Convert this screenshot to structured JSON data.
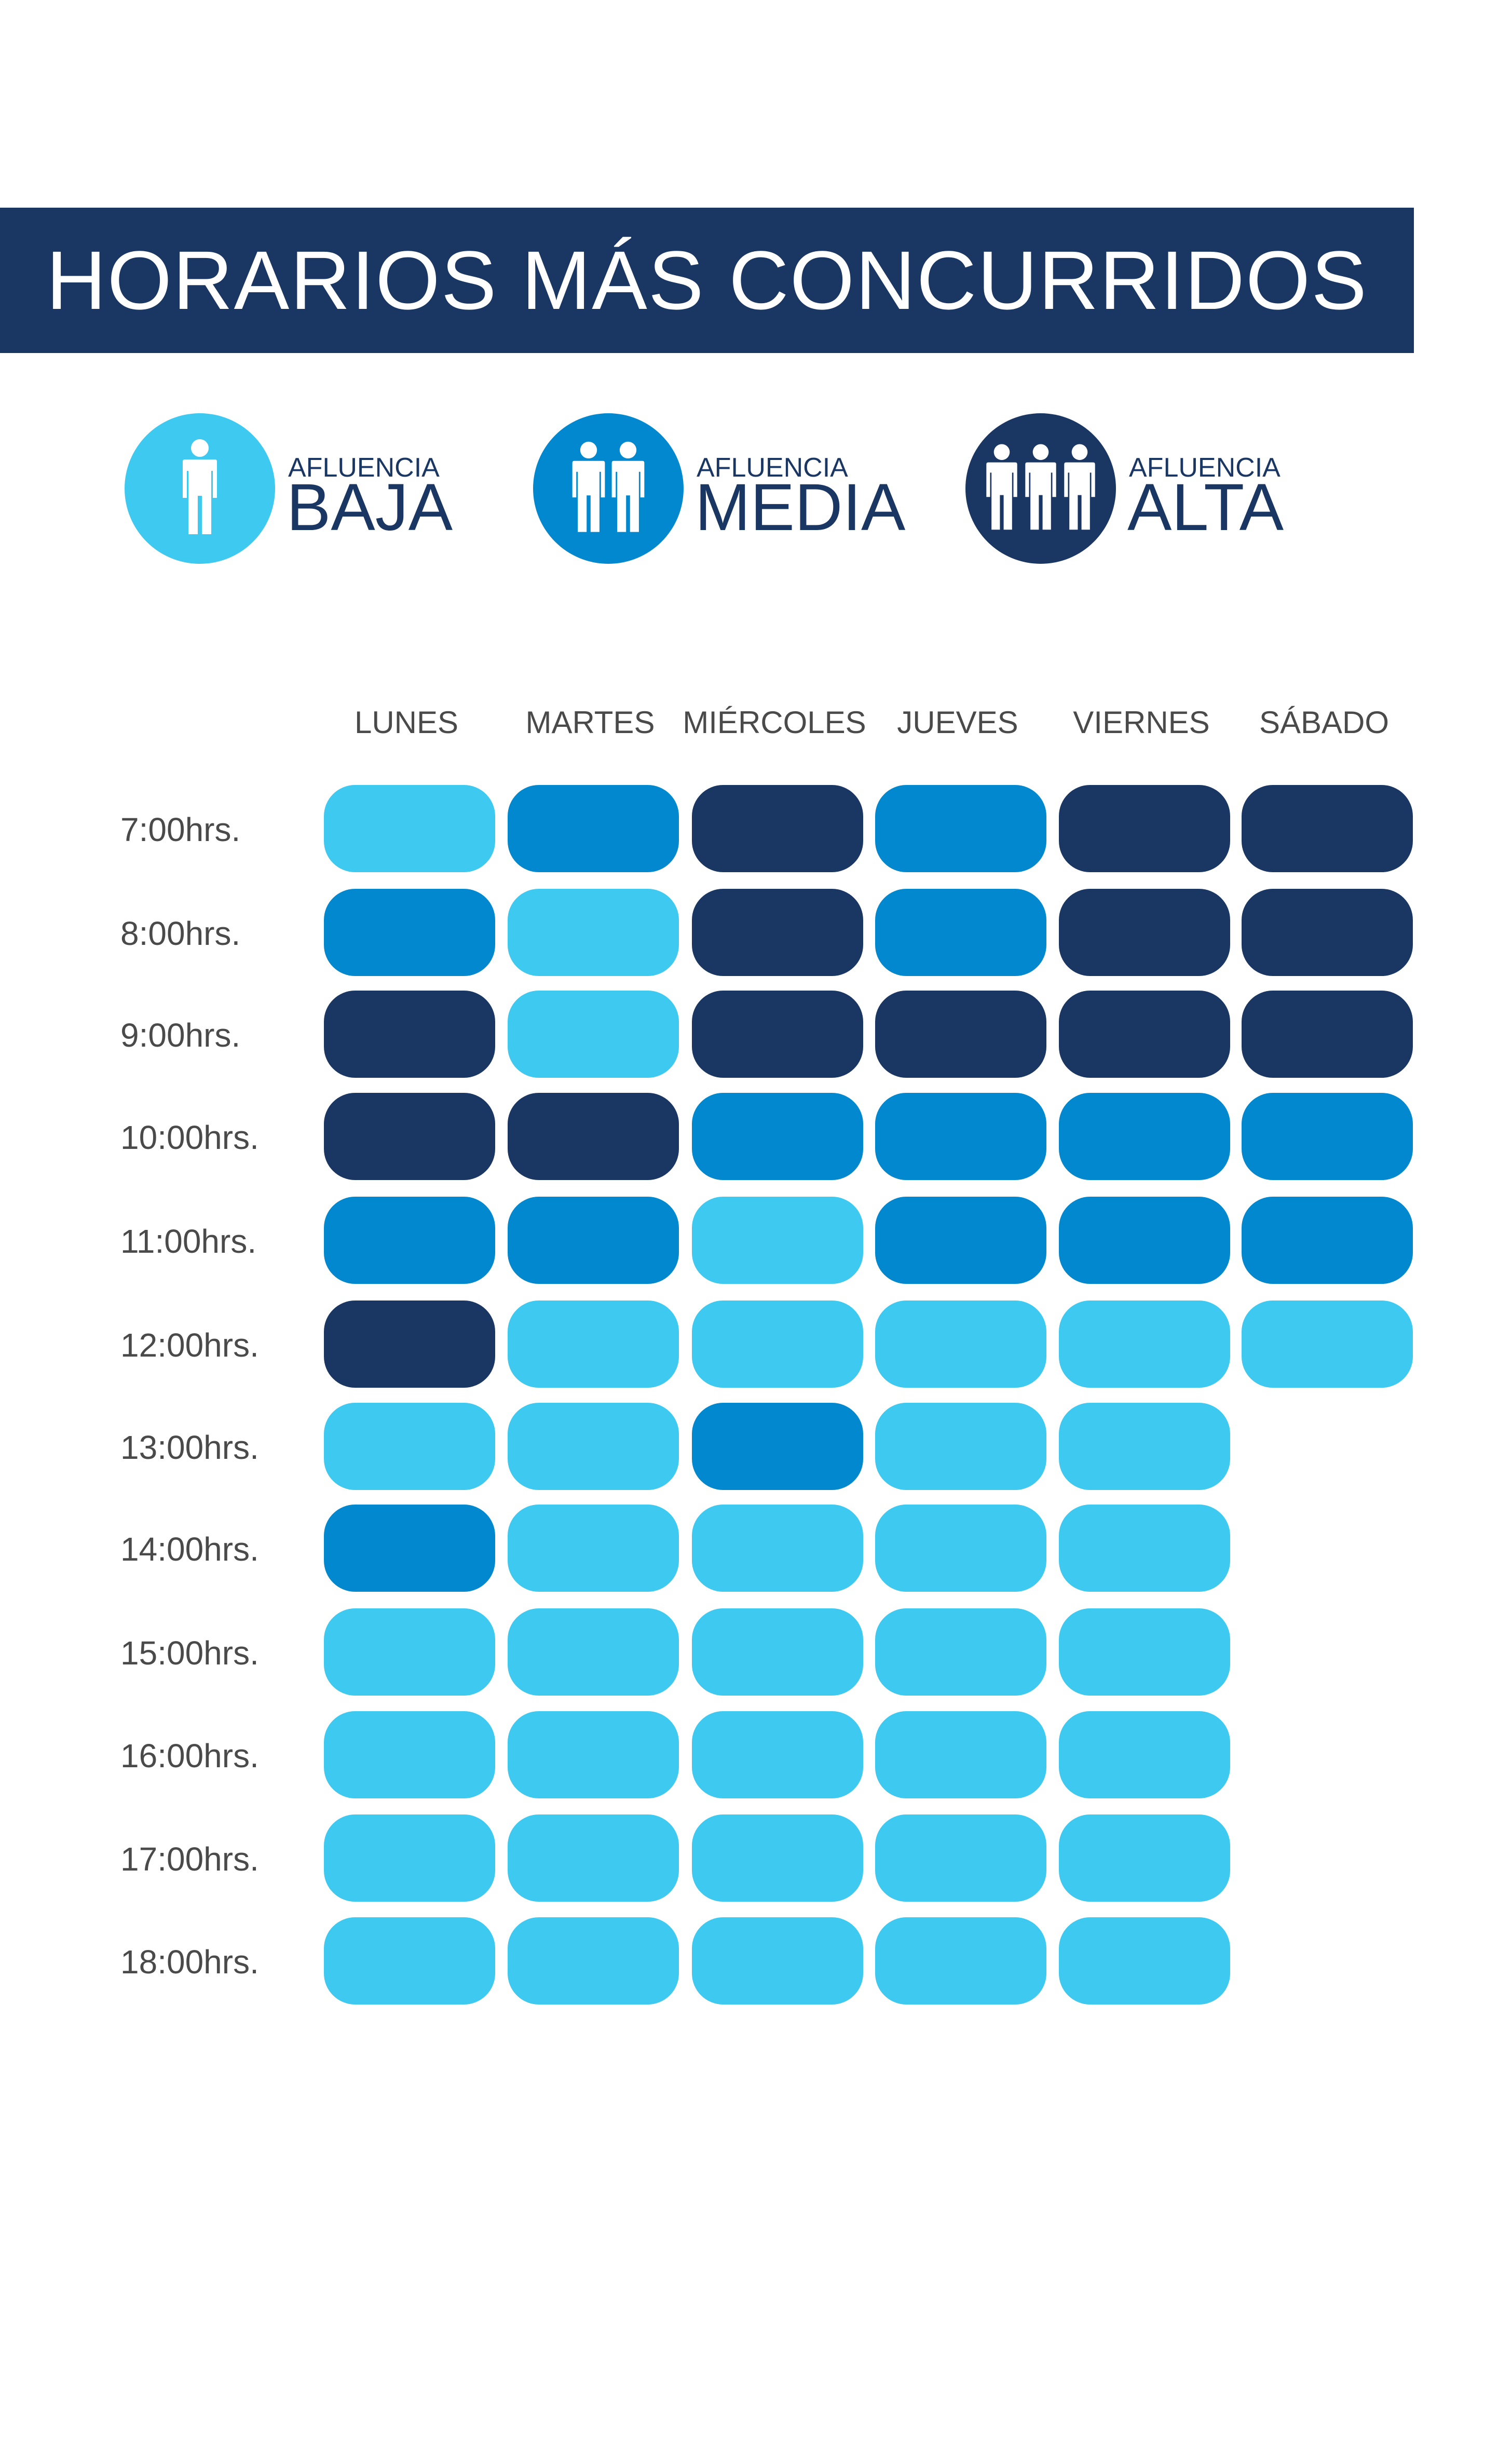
{
  "title": "HORARIOS MÁS CONCURRIDOS",
  "colors": {
    "banner": "#1a3764",
    "baja": "#3ec9f0",
    "media": "#0288cf",
    "alta": "#1a3764",
    "text_gray": "#4a4a4a"
  },
  "legend": [
    {
      "level": "baja",
      "small": "AFLUENCIA",
      "big": "BAJA",
      "people": 1,
      "icon": "person-icon"
    },
    {
      "level": "media",
      "small": "AFLUENCIA",
      "big": "MEDIA",
      "people": 2,
      "icon": "two-people-icon"
    },
    {
      "level": "alta",
      "small": "AFLUENCIA",
      "big": "ALTA",
      "people": 3,
      "icon": "three-people-icon"
    }
  ],
  "chart_data": {
    "type": "heatmap",
    "categories": [
      "LUNES",
      "MARTES",
      "MIÉRCOLES",
      "JUEVES",
      "VIERNES",
      "SÁBADO"
    ],
    "rows": [
      "7:00hrs.",
      "8:00hrs.",
      "9:00hrs.",
      "10:00hrs.",
      "11:00hrs.",
      "12:00hrs.",
      "13:00hrs.",
      "14:00hrs.",
      "15:00hrs.",
      "16:00hrs.",
      "17:00hrs.",
      "18:00hrs."
    ],
    "levels": [
      "baja",
      "media",
      "alta"
    ],
    "values": [
      [
        0,
        1,
        2,
        1,
        2,
        2
      ],
      [
        1,
        0,
        2,
        1,
        2,
        2
      ],
      [
        2,
        0,
        2,
        2,
        2,
        2
      ],
      [
        2,
        2,
        1,
        1,
        1,
        1
      ],
      [
        1,
        1,
        0,
        1,
        1,
        1
      ],
      [
        2,
        0,
        0,
        0,
        0,
        0
      ],
      [
        0,
        0,
        1,
        0,
        0,
        null
      ],
      [
        1,
        0,
        0,
        0,
        0,
        null
      ],
      [
        0,
        0,
        0,
        0,
        0,
        null
      ],
      [
        0,
        0,
        0,
        0,
        0,
        null
      ],
      [
        0,
        0,
        0,
        0,
        0,
        null
      ],
      [
        0,
        0,
        0,
        0,
        0,
        null
      ]
    ]
  }
}
